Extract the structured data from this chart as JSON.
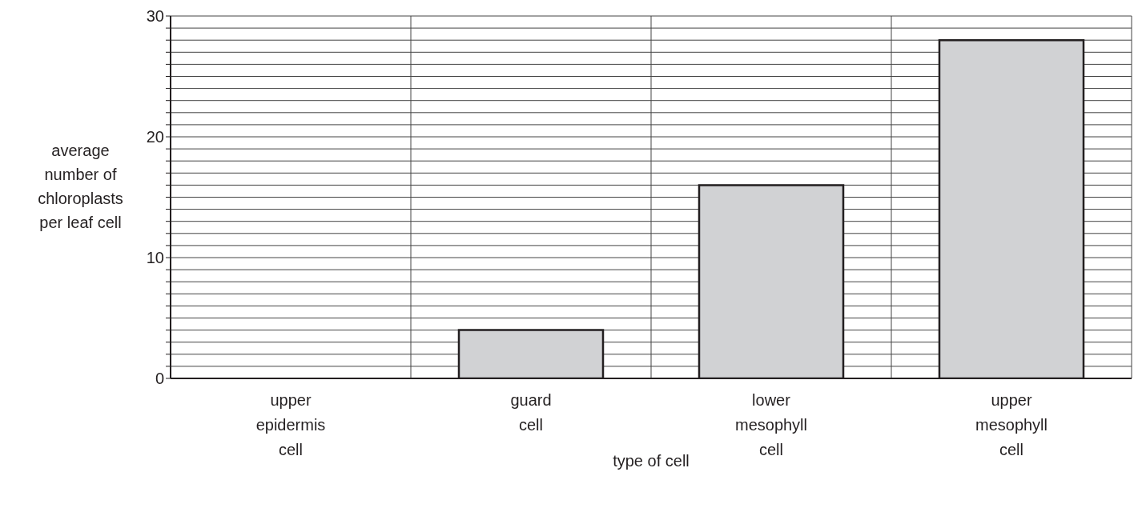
{
  "chart_data": {
    "type": "bar",
    "xlabel": "type of cell",
    "ylabel": "average number of chloroplasts per leaf cell",
    "categories": [
      "upper epidermis cell",
      "guard cell",
      "lower mesophyll cell",
      "upper mesophyll cell"
    ],
    "values": [
      0,
      4,
      16,
      28
    ],
    "color": "#d1d2d4",
    "ylim": [
      0,
      30
    ],
    "yticks": [
      0,
      {
        "value": 1,
        "label": null
      },
      {
        "value": 2,
        "label": null
      },
      {
        "value": 3,
        "label": null
      },
      {
        "value": 4,
        "label": null
      },
      {
        "value": 5,
        "label": null
      },
      {
        "value": 6,
        "label": null
      },
      {
        "value": 7,
        "label": null
      },
      {
        "value": 8,
        "label": null
      },
      {
        "value": 9,
        "label": null
      },
      10,
      {
        "value": 11,
        "label": null
      },
      {
        "value": 12,
        "label": null
      },
      {
        "value": 13,
        "label": null
      },
      {
        "value": 14,
        "label": null
      },
      {
        "value": 15,
        "label": null
      },
      {
        "value": 16,
        "label": null
      },
      {
        "value": 17,
        "label": null
      },
      {
        "value": 18,
        "label": null
      },
      {
        "value": 19,
        "label": null
      },
      20,
      {
        "value": 21,
        "label": null
      },
      {
        "value": 22,
        "label": null
      },
      {
        "value": 23,
        "label": null
      },
      {
        "value": 24,
        "label": null
      },
      {
        "value": 25,
        "label": null
      },
      {
        "value": 26,
        "label": null
      },
      {
        "value": 27,
        "label": null
      },
      {
        "value": 28,
        "label": null
      },
      {
        "value": 29,
        "label": null
      },
      30
    ],
    "grid": true
  }
}
